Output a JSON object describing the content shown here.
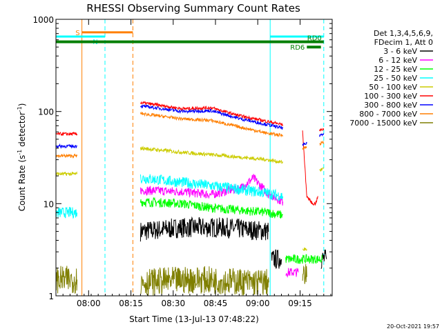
{
  "chart_data": {
    "type": "line",
    "title": "RHESSI Observing Summary Count Rates",
    "xlabel": "Start Time (13-Jul-13 07:48:22)",
    "ylabel_main": "Count Rate (s",
    "ylabel_sup": "-1",
    "ylabel_tail": " detector",
    "ylabel_close": ")",
    "x_unit": "minutes after 07:48:22",
    "xlim": [
      0,
      98
    ],
    "ylim": [
      1,
      1000
    ],
    "y_scale": "log",
    "x_ticks": [
      {
        "t": 11.6,
        "label": "08:00"
      },
      {
        "t": 26.6,
        "label": "08:15"
      },
      {
        "t": 41.6,
        "label": "08:30"
      },
      {
        "t": 56.6,
        "label": "08:45"
      },
      {
        "t": 71.6,
        "label": "09:00"
      },
      {
        "t": 86.6,
        "label": "09:15"
      }
    ],
    "y_ticks": [
      {
        "v": 1,
        "label": "1"
      },
      {
        "v": 10,
        "label": "10"
      },
      {
        "v": 100,
        "label": "100"
      },
      {
        "v": 1000,
        "label": "1000"
      }
    ],
    "legend_header": [
      "Det 1,3,4,5,6,9,",
      "FDecim 1, Att 0"
    ],
    "legend_placement": "right",
    "footer_date": "20-Oct-2021 19:57",
    "series": [
      {
        "name": "3 - 6 keV",
        "color": "#000000",
        "noise": 0.22,
        "segments": [
          {
            "x": [
              30,
              45,
              60,
              75.5
            ],
            "y": [
              5,
              5.5,
              5.5,
              5
            ]
          },
          {
            "x": [
              76.5,
              80
            ],
            "y": [
              2.5,
              2.5
            ]
          },
          {
            "x": [
              94,
              96
            ],
            "y": [
              2.5,
              2.5
            ]
          }
        ]
      },
      {
        "name": "6 - 12 keV",
        "color": "#ff00ff",
        "noise": 0.1,
        "segments": [
          {
            "x": [
              30,
              45,
              55,
              66,
              70,
              75,
              80.5
            ],
            "y": [
              14,
              13.5,
              12.5,
              15,
              19,
              13,
              10.5
            ]
          },
          {
            "x": [
              81.5,
              86
            ],
            "y": [
              1.8,
              1.8
            ]
          }
        ]
      },
      {
        "name": "12 - 25 keV",
        "color": "#00ff00",
        "noise": 0.1,
        "segments": [
          {
            "x": [
              30,
              45,
              55,
              65,
              75,
              80.5
            ],
            "y": [
              10.5,
              10,
              9,
              8.5,
              8,
              7.5
            ]
          },
          {
            "x": [
              81.5,
              92,
              94.5
            ],
            "y": [
              2.5,
              2.5,
              2.5
            ]
          }
        ]
      },
      {
        "name": "25 - 50 keV",
        "color": "#00ffff",
        "noise": 0.12,
        "segments": [
          {
            "x": [
              0,
              7.5
            ],
            "y": [
              8,
              8
            ]
          },
          {
            "x": [
              30,
              45,
              60,
              75,
              80.5
            ],
            "y": [
              19,
              17,
              15,
              13,
              12
            ]
          }
        ]
      },
      {
        "name": "50 - 100 keV",
        "color": "#cccc00",
        "noise": 0.04,
        "segments": [
          {
            "x": [
              0,
              7.5
            ],
            "y": [
              21,
              21
            ]
          },
          {
            "x": [
              30,
              45,
              60,
              75,
              80.5
            ],
            "y": [
              40,
              36,
              33,
              30,
              28
            ]
          },
          {
            "x": [
              87.5,
              89
            ],
            "y": [
              3.2,
              3.2
            ]
          },
          {
            "x": [
              93.5,
              95
            ],
            "y": [
              23,
              24
            ]
          }
        ]
      },
      {
        "name": "100 - 300 keV",
        "color": "#ff0000",
        "noise": 0.035,
        "segments": [
          {
            "x": [
              0,
              7.5
            ],
            "y": [
              57,
              57
            ]
          },
          {
            "x": [
              30,
              45,
              55,
              65,
              75,
              80.5
            ],
            "y": [
              125,
              107,
              110,
              90,
              78,
              72
            ]
          },
          {
            "x": [
              87.5,
              89,
              91,
              92,
              93
            ],
            "y": [
              60,
              12,
              10,
              10,
              12
            ]
          },
          {
            "x": [
              93.5,
              95
            ],
            "y": [
              62,
              65
            ]
          }
        ]
      },
      {
        "name": "300 - 800 keV",
        "color": "#0000ff",
        "noise": 0.035,
        "segments": [
          {
            "x": [
              0,
              7.5
            ],
            "y": [
              42,
              42
            ]
          },
          {
            "x": [
              30,
              45,
              55,
              65,
              75,
              80.5
            ],
            "y": [
              115,
              100,
              102,
              84,
              72,
              66
            ]
          },
          {
            "x": [
              87.5,
              89
            ],
            "y": [
              43,
              45
            ]
          },
          {
            "x": [
              93.5,
              95
            ],
            "y": [
              55,
              58
            ]
          }
        ]
      },
      {
        "name": "800 - 7000 keV",
        "color": "#ff7f00",
        "noise": 0.035,
        "segments": [
          {
            "x": [
              0,
              7.5
            ],
            "y": [
              33,
              33
            ]
          },
          {
            "x": [
              30,
              45,
              55,
              65,
              75,
              80.5
            ],
            "y": [
              95,
              83,
              80,
              68,
              58,
              55
            ]
          },
          {
            "x": [
              87.5,
              89
            ],
            "y": [
              40,
              41
            ]
          },
          {
            "x": [
              93.5,
              95
            ],
            "y": [
              45,
              46
            ]
          }
        ]
      },
      {
        "name": "7000 - 15000 keV",
        "color": "#7f7f00",
        "noise": 0.3,
        "segments": [
          {
            "x": [
              0,
              7.5
            ],
            "y": [
              1.5,
              1.5
            ]
          },
          {
            "x": [
              30,
              50,
              70,
              75.5
            ],
            "y": [
              1.4,
              1.5,
              1.4,
              1.4
            ]
          },
          {
            "x": [
              87.5,
              89
            ],
            "y": [
              1.6,
              1.6
            ]
          }
        ]
      }
    ],
    "vertical_markers": [
      {
        "t": 9.2,
        "color": "#ff7f00",
        "dash": false
      },
      {
        "t": 17.4,
        "color": "#00ffff",
        "dash": true
      },
      {
        "t": 27.3,
        "color": "#ff7f00",
        "dash": true
      },
      {
        "t": 76.0,
        "color": "#00ffff",
        "dash": false
      },
      {
        "t": 95.0,
        "color": "#00ffff",
        "dash": true
      }
    ],
    "flag_bars": [
      {
        "label": "S",
        "color": "#ff7f00",
        "x0": 9.2,
        "x1": 27.3,
        "y": 722,
        "label_side": "left",
        "thick": 3
      },
      {
        "label": "N",
        "color": "#00ffff",
        "x0": 0,
        "x1": 17.4,
        "y": 650,
        "label_side": "inside",
        "thick": 3
      },
      {
        "label": "",
        "color": "#00ffff",
        "x0": 76.0,
        "x1": 95.0,
        "y": 650,
        "label_side": "none",
        "thick": 3
      },
      {
        "label": "RD0",
        "color": "#007f00",
        "x0": 0,
        "x1": 95.0,
        "y": 570,
        "label_side": "right",
        "thick": 4
      },
      {
        "label": "RD6",
        "color": "#007f00",
        "x0": 89.0,
        "x1": 94.0,
        "y": 500,
        "label_side": "left",
        "thick": 4
      }
    ]
  }
}
